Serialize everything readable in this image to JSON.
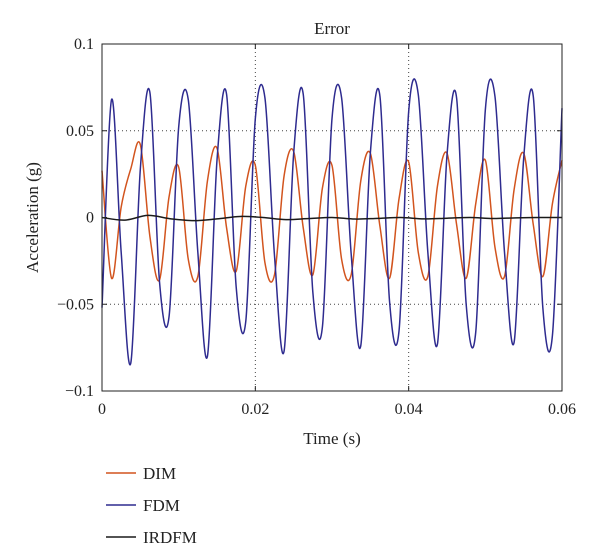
{
  "chart_data": {
    "type": "line",
    "title": "Error",
    "xlabel": "Time (s)",
    "ylabel": "Acceleration (g)",
    "xlim": [
      0,
      0.06
    ],
    "ylim": [
      -0.1,
      0.1
    ],
    "x_ticks": [
      0,
      0.02,
      0.04,
      0.06
    ],
    "x_tick_labels": [
      "0",
      "0.02",
      "0.04",
      "0.06"
    ],
    "y_ticks": [
      -0.1,
      -0.05,
      0,
      0.05,
      0.1
    ],
    "y_tick_labels": [
      "−0.1",
      "−0.05",
      "0",
      "0.05",
      "0.1"
    ],
    "grid": "dotted",
    "legend_position": "bottom-left",
    "series": [
      {
        "name": "DIM",
        "color": "#d2541e",
        "x": [
          0,
          0.00125,
          0.0025,
          0.00375,
          0.005,
          0.00625,
          0.0075,
          0.00875,
          0.01,
          0.01125,
          0.0125,
          0.01375,
          0.015,
          0.01625,
          0.0175,
          0.01875,
          0.02,
          0.02125,
          0.0225,
          0.02375,
          0.025,
          0.02625,
          0.0275,
          0.02875,
          0.03,
          0.03125,
          0.0325,
          0.03375,
          0.035,
          0.03625,
          0.0375,
          0.03875,
          0.04,
          0.04125,
          0.0425,
          0.04375,
          0.045,
          0.04625,
          0.0475,
          0.04875,
          0.05,
          0.05125,
          0.0525,
          0.05375,
          0.055,
          0.05625,
          0.0575,
          0.05875,
          0.06
        ],
        "y": [
          0.027,
          -0.035,
          0.006,
          0.028,
          0.042,
          -0.011,
          -0.036,
          0.012,
          0.029,
          -0.024,
          -0.034,
          0.021,
          0.04,
          -0.006,
          -0.031,
          0.018,
          0.03,
          -0.026,
          -0.033,
          0.024,
          0.038,
          -0.006,
          -0.033,
          0.017,
          0.03,
          -0.024,
          -0.033,
          0.021,
          0.037,
          -0.005,
          -0.035,
          0.011,
          0.032,
          -0.02,
          -0.034,
          0.018,
          0.037,
          -0.004,
          -0.035,
          0.008,
          0.033,
          -0.017,
          -0.034,
          0.016,
          0.037,
          -0.004,
          -0.034,
          0.008,
          0.033
        ]
      },
      {
        "name": "FDM",
        "color": "#2e2b8f",
        "x": [
          0,
          0.00125,
          0.0025,
          0.00375,
          0.005,
          0.00625,
          0.0075,
          0.00875,
          0.01,
          0.01125,
          0.0125,
          0.01375,
          0.015,
          0.01625,
          0.0175,
          0.01875,
          0.02,
          0.02125,
          0.0225,
          0.02375,
          0.025,
          0.02625,
          0.0275,
          0.02875,
          0.03,
          0.03125,
          0.0325,
          0.03375,
          0.035,
          0.03625,
          0.0375,
          0.03875,
          0.04,
          0.04125,
          0.0425,
          0.04375,
          0.045,
          0.04625,
          0.0475,
          0.04875,
          0.05,
          0.05125,
          0.0525,
          0.05375,
          0.055,
          0.05625,
          0.0575,
          0.05875,
          0.06
        ],
        "y": [
          -0.052,
          0.068,
          -0.02,
          -0.084,
          0.028,
          0.072,
          -0.037,
          -0.057,
          0.052,
          0.068,
          -0.02,
          -0.08,
          0.033,
          0.071,
          -0.04,
          -0.06,
          0.057,
          0.069,
          -0.022,
          -0.077,
          0.037,
          0.071,
          -0.043,
          -0.063,
          0.057,
          0.069,
          -0.021,
          -0.074,
          0.037,
          0.07,
          -0.048,
          -0.065,
          0.061,
          0.071,
          -0.02,
          -0.073,
          0.036,
          0.069,
          -0.05,
          -0.066,
          0.062,
          0.07,
          -0.02,
          -0.072,
          0.034,
          0.07,
          -0.052,
          -0.068,
          0.063
        ]
      },
      {
        "name": "IRDFM",
        "color": "#1a1a1a",
        "x": [
          0,
          0.003,
          0.006,
          0.009,
          0.012,
          0.015,
          0.018,
          0.021,
          0.024,
          0.027,
          0.03,
          0.033,
          0.036,
          0.039,
          0.042,
          0.045,
          0.048,
          0.051,
          0.054,
          0.057,
          0.06
        ],
        "y": [
          0.0,
          -0.0015,
          0.0012,
          -0.0008,
          -0.0018,
          -0.0008,
          0.0006,
          0.0,
          -0.0012,
          -0.0006,
          0.0,
          -0.0009,
          -0.0005,
          0.0,
          -0.0008,
          -0.0004,
          0.0,
          -0.0006,
          -0.0002,
          0.0,
          0.0
        ]
      }
    ]
  }
}
